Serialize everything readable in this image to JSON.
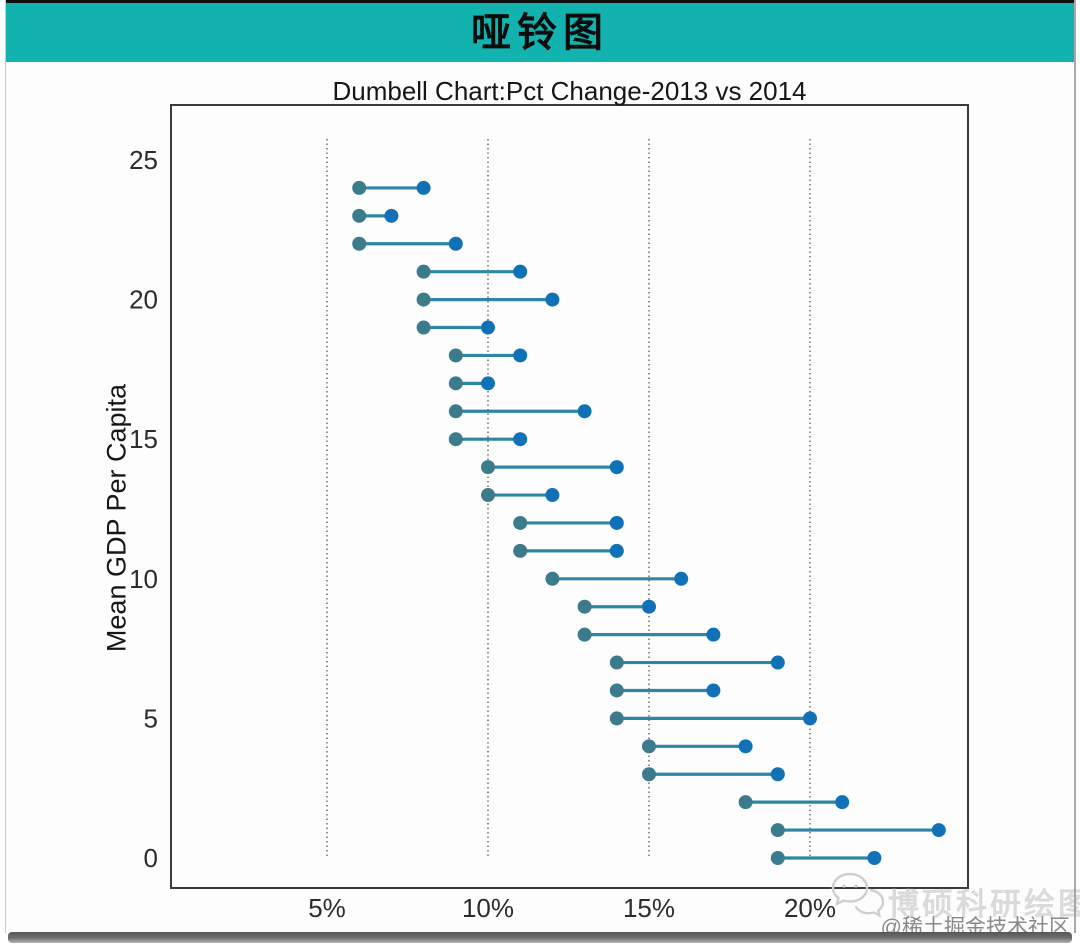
{
  "header": {
    "title": "哑铃图",
    "background_color": "#12b3ae"
  },
  "chart_data": {
    "type": "dumbbell",
    "title": "Dumbell Chart:Pct Change-2013 vs 2014",
    "xlabel": "",
    "ylabel": "Mean GDP Per Capita",
    "x_ticks": [
      {
        "value": 5,
        "label": "5%"
      },
      {
        "value": 10,
        "label": "10%"
      },
      {
        "value": 15,
        "label": "15%"
      },
      {
        "value": 20,
        "label": "20%"
      }
    ],
    "y_ticks": [
      0,
      5,
      10,
      15,
      20,
      25
    ],
    "xlim": [
      0.2,
      24.9
    ],
    "ylim": [
      -1,
      27
    ],
    "grid": "vertical-dotted-at-x-ticks",
    "legend": "none",
    "start_color": "#3c7b8c",
    "end_color": "#1171b6",
    "line_color": "#2e86a5",
    "points": [
      {
        "category": 24,
        "start": 6,
        "end": 8
      },
      {
        "category": 23,
        "start": 6,
        "end": 7
      },
      {
        "category": 22,
        "start": 6,
        "end": 9
      },
      {
        "category": 21,
        "start": 8,
        "end": 11
      },
      {
        "category": 20,
        "start": 8,
        "end": 12
      },
      {
        "category": 19,
        "start": 8,
        "end": 10
      },
      {
        "category": 18,
        "start": 9,
        "end": 11
      },
      {
        "category": 17,
        "start": 9,
        "end": 10
      },
      {
        "category": 16,
        "start": 9,
        "end": 13
      },
      {
        "category": 15,
        "start": 9,
        "end": 11
      },
      {
        "category": 14,
        "start": 10,
        "end": 14
      },
      {
        "category": 13,
        "start": 10,
        "end": 12
      },
      {
        "category": 12,
        "start": 11,
        "end": 14
      },
      {
        "category": 11,
        "start": 11,
        "end": 14
      },
      {
        "category": 10,
        "start": 12,
        "end": 16
      },
      {
        "category": 9,
        "start": 13,
        "end": 15
      },
      {
        "category": 8,
        "start": 13,
        "end": 17
      },
      {
        "category": 7,
        "start": 14,
        "end": 19
      },
      {
        "category": 6,
        "start": 14,
        "end": 17
      },
      {
        "category": 5,
        "start": 14,
        "end": 20
      },
      {
        "category": 4,
        "start": 15,
        "end": 18
      },
      {
        "category": 3,
        "start": 15,
        "end": 19
      },
      {
        "category": 2,
        "start": 18,
        "end": 21
      },
      {
        "category": 1,
        "start": 19,
        "end": 24
      },
      {
        "category": 0,
        "start": 19,
        "end": 22
      }
    ]
  },
  "watermarks": {
    "brand": "博硕科研绘图",
    "community": "@稀土掘金技术社区",
    "icon": "wechat-icon"
  }
}
